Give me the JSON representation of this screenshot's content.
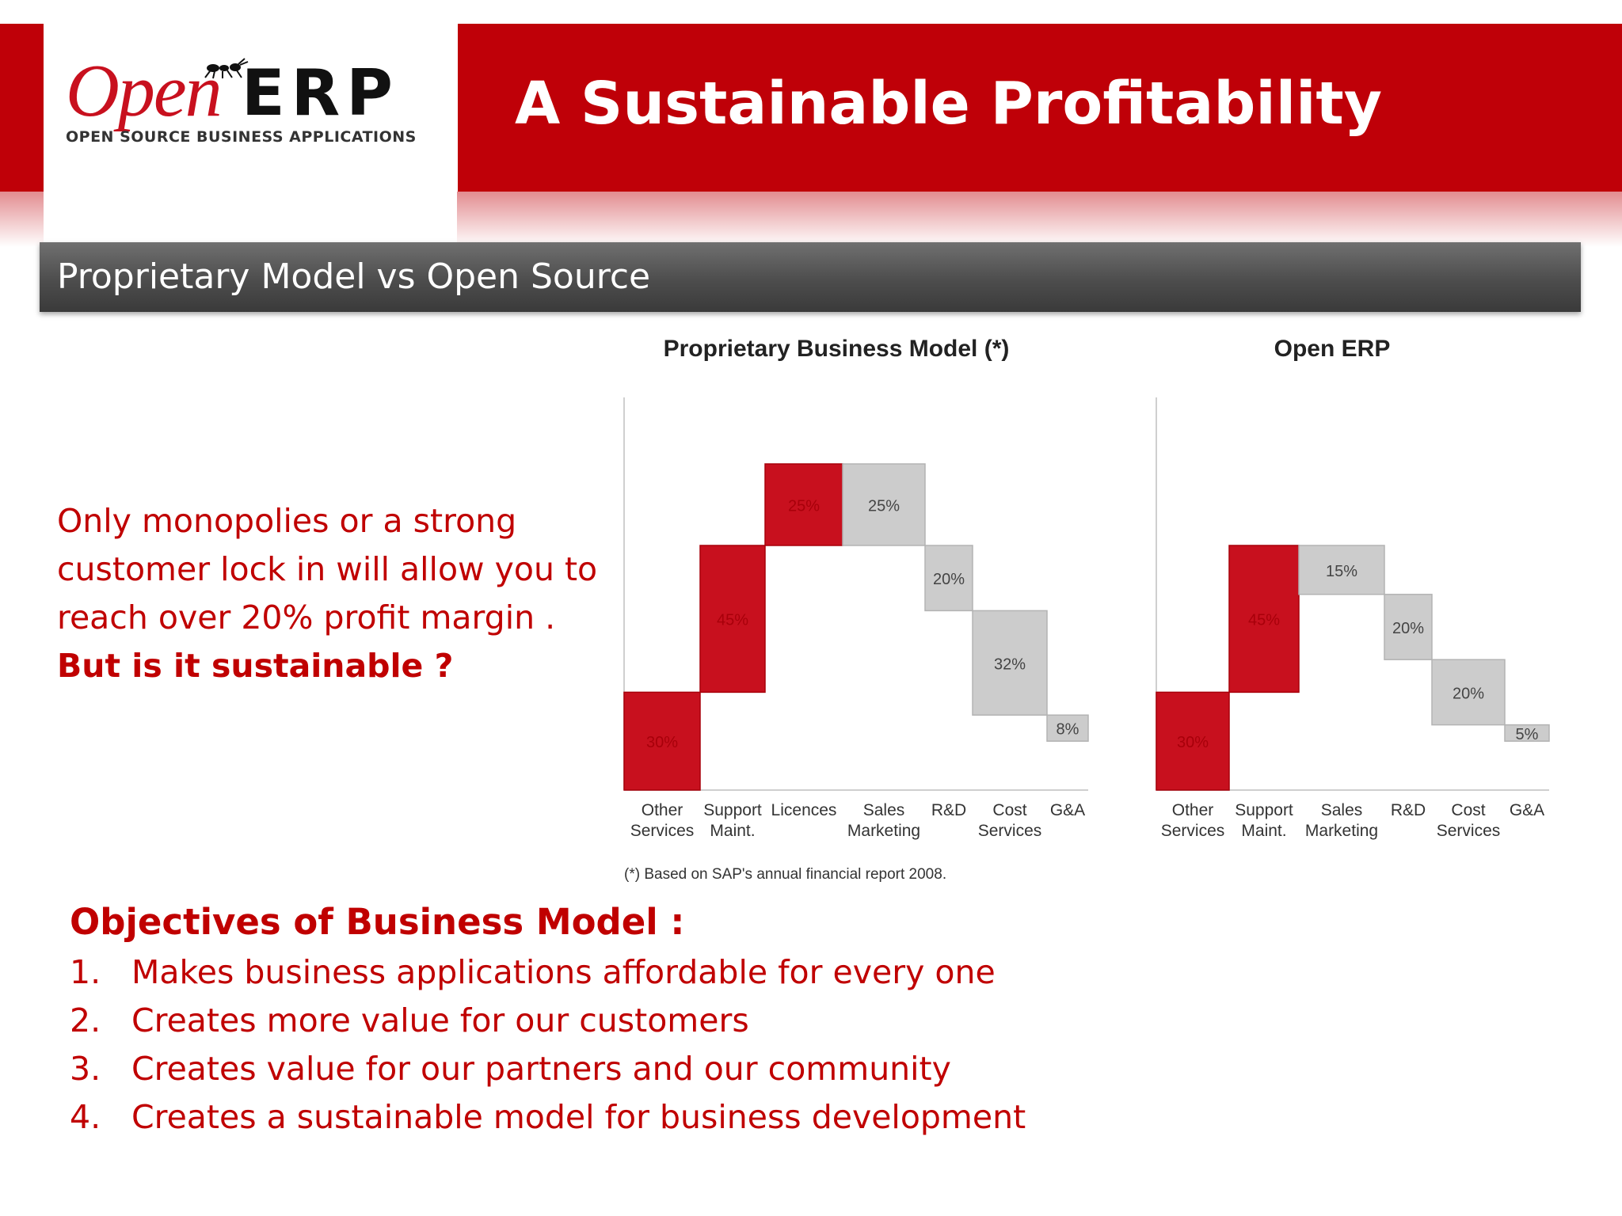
{
  "header": {
    "title": "A Sustainable Profitability",
    "subtitle": "Proprietary Model vs Open Source"
  },
  "logo": {
    "open": "Open",
    "erp": "ERP",
    "tagline": "OPEN SOURCE BUSINESS APPLICATIONS"
  },
  "intro": {
    "lines": [
      "Only monopolies or a strong",
      "customer lock in will allow you to",
      "reach over 20% profit margin ."
    ],
    "question": "But is it  sustainable ?"
  },
  "objectives": {
    "heading": "Objectives of Business Model :",
    "items": [
      {
        "num": "1.",
        "text": "Makes business applications affordable for every one"
      },
      {
        "num": "2.",
        "text": "Creates more value for our customers"
      },
      {
        "num": "3.",
        "text": "Creates value for our partners and our community"
      },
      {
        "num": "4.",
        "text": "Creates a sustainable model for business development"
      }
    ]
  },
  "colors": {
    "brand_red": "#bf0008",
    "revenue_red": "#c8101e",
    "cost_gray": "#cccccc"
  },
  "chart_data": [
    {
      "type": "waterfall",
      "title": "Proprietary Business Model (*)",
      "footnote": "(*) Based on SAP's annual financial report 2008.",
      "categories": [
        [
          "Other",
          "Services"
        ],
        [
          "Support",
          "Maint."
        ],
        [
          "Licences"
        ],
        [
          "Sales",
          "Marketing"
        ],
        [
          "R&D"
        ],
        [
          "Cost",
          "Services"
        ],
        [
          "G&A"
        ]
      ],
      "values": [
        30,
        45,
        25,
        -25,
        -20,
        -32,
        -8
      ],
      "labels": [
        "30%",
        "45%",
        "25%",
        "25%",
        "20%",
        "32%",
        "8%"
      ],
      "kinds": [
        "revenue",
        "revenue",
        "revenue",
        "cost",
        "cost",
        "cost",
        "cost"
      ]
    },
    {
      "type": "waterfall",
      "title": "Open ERP",
      "categories": [
        [
          "Other",
          "Services"
        ],
        [
          "Support",
          "Maint."
        ],
        [
          "Sales",
          "Marketing"
        ],
        [
          "R&D"
        ],
        [
          "Cost",
          "Services"
        ],
        [
          "G&A"
        ]
      ],
      "values": [
        30,
        45,
        -15,
        -20,
        -20,
        -5
      ],
      "labels": [
        "30%",
        "45%",
        "15%",
        "20%",
        "20%",
        "5%"
      ],
      "kinds": [
        "revenue",
        "revenue",
        "cost",
        "cost",
        "cost",
        "cost"
      ]
    }
  ]
}
